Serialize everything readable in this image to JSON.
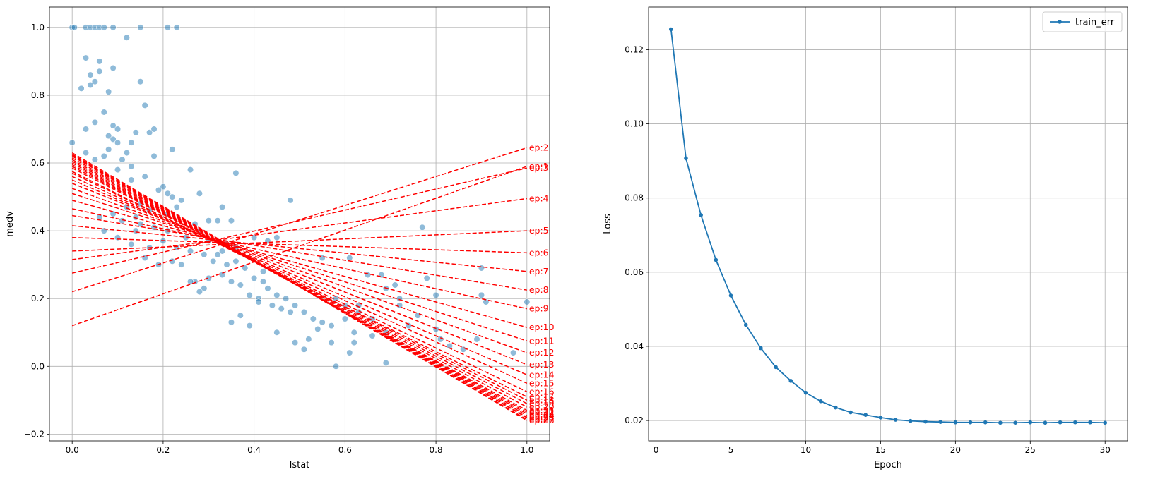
{
  "chart_data": [
    {
      "type": "scatter",
      "xlabel": "lstat",
      "ylabel": "medv",
      "xlim": [
        -0.05,
        1.05
      ],
      "ylim": [
        -0.22,
        1.06
      ],
      "xticks": [
        0.0,
        0.2,
        0.4,
        0.6,
        0.8,
        1.0
      ],
      "xtick_labels": [
        "0.0",
        "0.2",
        "0.4",
        "0.6",
        "0.8",
        "1.0"
      ],
      "yticks": [
        -0.2,
        0.0,
        0.2,
        0.4,
        0.6,
        0.8,
        1.0
      ],
      "ytick_labels": [
        "−0.2",
        "0.0",
        "0.2",
        "0.4",
        "0.6",
        "0.8",
        "1.0"
      ],
      "grid": true,
      "point_color": "#1f77b4",
      "line_color": "#ff0000",
      "points": [
        [
          0.0,
          1.0
        ],
        [
          0.005,
          1.0
        ],
        [
          0.03,
          1.0
        ],
        [
          0.04,
          1.0
        ],
        [
          0.05,
          1.0
        ],
        [
          0.06,
          1.0
        ],
        [
          0.07,
          1.0
        ],
        [
          0.09,
          1.0
        ],
        [
          0.15,
          1.0
        ],
        [
          0.21,
          1.0
        ],
        [
          0.23,
          1.0
        ],
        [
          0.12,
          0.97
        ],
        [
          0.03,
          0.91
        ],
        [
          0.06,
          0.9
        ],
        [
          0.06,
          0.87
        ],
        [
          0.09,
          0.88
        ],
        [
          0.04,
          0.86
        ],
        [
          0.05,
          0.84
        ],
        [
          0.15,
          0.84
        ],
        [
          0.02,
          0.82
        ],
        [
          0.04,
          0.83
        ],
        [
          0.08,
          0.81
        ],
        [
          0.16,
          0.77
        ],
        [
          0.07,
          0.75
        ],
        [
          0.05,
          0.72
        ],
        [
          0.09,
          0.71
        ],
        [
          0.03,
          0.7
        ],
        [
          0.1,
          0.7
        ],
        [
          0.17,
          0.69
        ],
        [
          0.18,
          0.7
        ],
        [
          0.14,
          0.69
        ],
        [
          0.08,
          0.68
        ],
        [
          0.09,
          0.67
        ],
        [
          0.1,
          0.66
        ],
        [
          0.13,
          0.66
        ],
        [
          0.0,
          0.66
        ],
        [
          0.08,
          0.64
        ],
        [
          0.12,
          0.63
        ],
        [
          0.22,
          0.64
        ],
        [
          0.03,
          0.63
        ],
        [
          0.07,
          0.62
        ],
        [
          0.11,
          0.61
        ],
        [
          0.05,
          0.61
        ],
        [
          0.13,
          0.59
        ],
        [
          0.18,
          0.62
        ],
        [
          0.26,
          0.58
        ],
        [
          0.36,
          0.57
        ],
        [
          0.1,
          0.58
        ],
        [
          0.13,
          0.55
        ],
        [
          0.16,
          0.56
        ],
        [
          0.2,
          0.53
        ],
        [
          0.21,
          0.51
        ],
        [
          0.22,
          0.5
        ],
        [
          0.28,
          0.51
        ],
        [
          0.19,
          0.52
        ],
        [
          0.24,
          0.49
        ],
        [
          0.48,
          0.49
        ],
        [
          0.33,
          0.47
        ],
        [
          0.23,
          0.47
        ],
        [
          0.21,
          0.45
        ],
        [
          0.27,
          0.42
        ],
        [
          0.3,
          0.43
        ],
        [
          0.32,
          0.43
        ],
        [
          0.35,
          0.43
        ],
        [
          0.06,
          0.44
        ],
        [
          0.09,
          0.45
        ],
        [
          0.14,
          0.44
        ],
        [
          0.18,
          0.41
        ],
        [
          0.21,
          0.4
        ],
        [
          0.11,
          0.43
        ],
        [
          0.15,
          0.42
        ],
        [
          0.77,
          0.41
        ],
        [
          0.28,
          0.4
        ],
        [
          0.25,
          0.38
        ],
        [
          0.3,
          0.37
        ],
        [
          0.07,
          0.4
        ],
        [
          0.1,
          0.38
        ],
        [
          0.13,
          0.36
        ],
        [
          0.17,
          0.35
        ],
        [
          0.2,
          0.37
        ],
        [
          0.23,
          0.35
        ],
        [
          0.26,
          0.34
        ],
        [
          0.29,
          0.33
        ],
        [
          0.31,
          0.31
        ],
        [
          0.34,
          0.3
        ],
        [
          0.36,
          0.31
        ],
        [
          0.38,
          0.29
        ],
        [
          0.4,
          0.26
        ],
        [
          0.42,
          0.25
        ],
        [
          0.43,
          0.23
        ],
        [
          0.45,
          0.21
        ],
        [
          0.47,
          0.2
        ],
        [
          0.49,
          0.18
        ],
        [
          0.51,
          0.16
        ],
        [
          0.53,
          0.14
        ],
        [
          0.55,
          0.13
        ],
        [
          0.57,
          0.12
        ],
        [
          0.16,
          0.32
        ],
        [
          0.19,
          0.3
        ],
        [
          0.22,
          0.31
        ],
        [
          0.24,
          0.3
        ],
        [
          0.27,
          0.25
        ],
        [
          0.29,
          0.23
        ],
        [
          0.3,
          0.26
        ],
        [
          0.33,
          0.27
        ],
        [
          0.35,
          0.25
        ],
        [
          0.37,
          0.24
        ],
        [
          0.39,
          0.21
        ],
        [
          0.41,
          0.2
        ],
        [
          0.44,
          0.18
        ],
        [
          0.46,
          0.17
        ],
        [
          0.48,
          0.16
        ],
        [
          0.35,
          0.13
        ],
        [
          0.37,
          0.15
        ],
        [
          0.39,
          0.12
        ],
        [
          0.41,
          0.19
        ],
        [
          0.42,
          0.28
        ],
        [
          0.45,
          0.1
        ],
        [
          0.49,
          0.07
        ],
        [
          0.51,
          0.05
        ],
        [
          0.52,
          0.08
        ],
        [
          0.54,
          0.11
        ],
        [
          0.57,
          0.07
        ],
        [
          0.58,
          0.0
        ],
        [
          0.6,
          0.14
        ],
        [
          0.61,
          0.04
        ],
        [
          0.62,
          0.1
        ],
        [
          0.62,
          0.07
        ],
        [
          0.63,
          0.16
        ],
        [
          0.65,
          0.27
        ],
        [
          0.68,
          0.27
        ],
        [
          0.69,
          0.23
        ],
        [
          0.69,
          0.01
        ],
        [
          0.71,
          0.24
        ],
        [
          0.72,
          0.18
        ],
        [
          0.74,
          0.12
        ],
        [
          0.76,
          0.15
        ],
        [
          0.78,
          0.26
        ],
        [
          0.8,
          0.21
        ],
        [
          0.8,
          0.11
        ],
        [
          0.81,
          0.08
        ],
        [
          0.83,
          0.06
        ],
        [
          0.86,
          0.05
        ],
        [
          0.89,
          0.08
        ],
        [
          0.9,
          0.29
        ],
        [
          0.9,
          0.21
        ],
        [
          0.91,
          0.19
        ],
        [
          0.97,
          0.04
        ],
        [
          1.0,
          0.19
        ],
        [
          0.55,
          0.32
        ],
        [
          0.61,
          0.32
        ],
        [
          0.58,
          0.2
        ],
        [
          0.6,
          0.18
        ],
        [
          0.63,
          0.18
        ],
        [
          0.66,
          0.14
        ],
        [
          0.69,
          0.1
        ],
        [
          0.72,
          0.2
        ],
        [
          0.66,
          0.09
        ],
        [
          0.43,
          0.37
        ],
        [
          0.45,
          0.38
        ],
        [
          0.4,
          0.38
        ],
        [
          0.12,
          0.47
        ],
        [
          0.15,
          0.48
        ],
        [
          0.17,
          0.46
        ],
        [
          0.14,
          0.4
        ],
        [
          0.26,
          0.25
        ],
        [
          0.28,
          0.22
        ],
        [
          0.33,
          0.34
        ],
        [
          0.32,
          0.33
        ],
        [
          0.34,
          0.36
        ],
        [
          0.36,
          0.35
        ]
      ],
      "lines": [
        {
          "label": "ep:1",
          "intercept": 0.12,
          "slope": 0.47
        },
        {
          "label": "ep:2",
          "intercept": 0.22,
          "slope": 0.425
        },
        {
          "label": "ep:3",
          "intercept": 0.275,
          "slope": 0.31
        },
        {
          "label": "ep:4",
          "intercept": 0.315,
          "slope": 0.18
        },
        {
          "label": "ep:5",
          "intercept": 0.34,
          "slope": 0.06
        },
        {
          "label": "ep:6",
          "intercept": 0.38,
          "slope": -0.045
        },
        {
          "label": "ep:7",
          "intercept": 0.415,
          "slope": -0.135
        },
        {
          "label": "ep:8",
          "intercept": 0.445,
          "slope": -0.22
        },
        {
          "label": "ep:9",
          "intercept": 0.465,
          "slope": -0.295
        },
        {
          "label": "ep:10",
          "intercept": 0.49,
          "slope": -0.375
        },
        {
          "label": "ep:11",
          "intercept": 0.51,
          "slope": -0.435
        },
        {
          "label": "ep:12",
          "intercept": 0.525,
          "slope": -0.485
        },
        {
          "label": "ep:13",
          "intercept": 0.54,
          "slope": -0.535
        },
        {
          "label": "ep:14",
          "intercept": 0.55,
          "slope": -0.575
        },
        {
          "label": "ep:15",
          "intercept": 0.56,
          "slope": -0.61
        },
        {
          "label": "ep:16",
          "intercept": 0.57,
          "slope": -0.645
        },
        {
          "label": "ep:17",
          "intercept": 0.575,
          "slope": -0.665
        },
        {
          "label": "ep:18",
          "intercept": 0.585,
          "slope": -0.685
        },
        {
          "label": "ep:19",
          "intercept": 0.59,
          "slope": -0.7
        },
        {
          "label": "ep:20",
          "intercept": 0.595,
          "slope": -0.715
        },
        {
          "label": "ep:21",
          "intercept": 0.6,
          "slope": -0.73
        },
        {
          "label": "ep:22",
          "intercept": 0.605,
          "slope": -0.74
        },
        {
          "label": "ep:23",
          "intercept": 0.61,
          "slope": -0.75
        },
        {
          "label": "ep:24",
          "intercept": 0.615,
          "slope": -0.76
        },
        {
          "label": "ep:25",
          "intercept": 0.62,
          "slope": -0.77
        },
        {
          "label": "ep:26",
          "intercept": 0.623,
          "slope": -0.775
        },
        {
          "label": "ep:27",
          "intercept": 0.626,
          "slope": -0.783
        },
        {
          "label": "ep:28",
          "intercept": 0.63,
          "slope": -0.79
        }
      ]
    },
    {
      "type": "line",
      "xlabel": "Epoch",
      "ylabel": "Loss",
      "xlim": [
        -0.5,
        31.5
      ],
      "ylim": [
        0.0145,
        0.1315
      ],
      "xticks": [
        0,
        5,
        10,
        15,
        20,
        25,
        30
      ],
      "xtick_labels": [
        "0",
        "5",
        "10",
        "15",
        "20",
        "25",
        "30"
      ],
      "yticks": [
        0.02,
        0.04,
        0.06,
        0.08,
        0.1,
        0.12
      ],
      "ytick_labels": [
        "0.02",
        "0.04",
        "0.06",
        "0.08",
        "0.10",
        "0.12"
      ],
      "grid": true,
      "legend": "top-right",
      "series": [
        {
          "name": "train_err",
          "color": "#1f77b4",
          "x": [
            1,
            2,
            3,
            4,
            5,
            6,
            7,
            8,
            9,
            10,
            11,
            12,
            13,
            14,
            15,
            16,
            17,
            18,
            19,
            20,
            21,
            22,
            23,
            24,
            25,
            26,
            27,
            28,
            29,
            30
          ],
          "values": [
            0.1255,
            0.0907,
            0.0754,
            0.0633,
            0.0537,
            0.0458,
            0.0395,
            0.0344,
            0.0307,
            0.0275,
            0.0252,
            0.0235,
            0.0222,
            0.0215,
            0.0208,
            0.0202,
            0.0199,
            0.0197,
            0.0196,
            0.0195,
            0.0195,
            0.0195,
            0.0194,
            0.0194,
            0.0195,
            0.0194,
            0.0195,
            0.0195,
            0.0195,
            0.0194
          ]
        }
      ]
    }
  ]
}
